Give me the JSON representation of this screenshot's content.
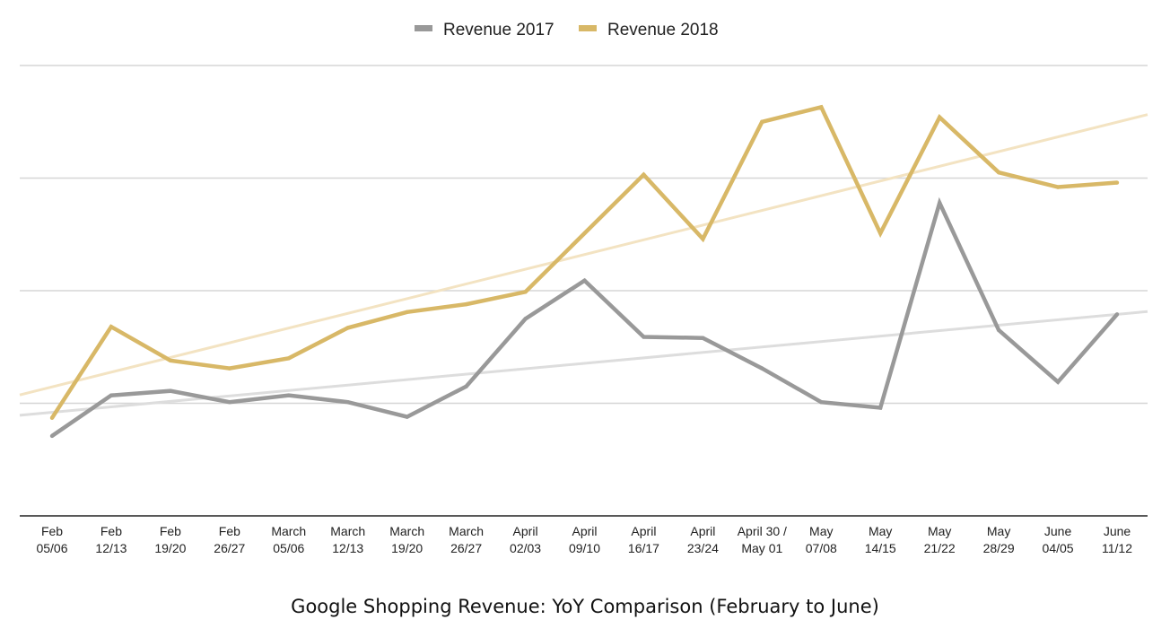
{
  "caption": "Google Shopping Revenue: YoY Comparison (February to June)",
  "chart_data": {
    "type": "line",
    "title": "",
    "xlabel": "",
    "ylabel": "",
    "ylim": [
      0,
      4
    ],
    "gridlines": [
      1,
      2,
      3,
      4
    ],
    "grid": true,
    "legend_position": "top-center",
    "categories": [
      [
        "Feb",
        "05/06"
      ],
      [
        "Feb",
        "12/13"
      ],
      [
        "Feb",
        "19/20"
      ],
      [
        "Feb",
        "26/27"
      ],
      [
        "March",
        "05/06"
      ],
      [
        "March",
        "12/13"
      ],
      [
        "March",
        "19/20"
      ],
      [
        "March",
        "26/27"
      ],
      [
        "April",
        "02/03"
      ],
      [
        "April",
        "09/10"
      ],
      [
        "April",
        "16/17"
      ],
      [
        "April",
        "23/24"
      ],
      [
        "April 30 /",
        "May 01"
      ],
      [
        "May",
        "07/08"
      ],
      [
        "May",
        "14/15"
      ],
      [
        "May",
        "21/22"
      ],
      [
        "May",
        "28/29"
      ],
      [
        "June",
        "04/05"
      ],
      [
        "June",
        "11/12"
      ]
    ],
    "series": [
      {
        "name": "Revenue 2017",
        "color": "#999999",
        "trend_color": "#dddddd",
        "values": [
          0.71,
          1.07,
          1.11,
          1.01,
          1.07,
          1.01,
          0.88,
          1.15,
          1.75,
          2.09,
          1.59,
          1.58,
          1.31,
          1.01,
          0.96,
          2.78,
          1.65,
          1.19,
          1.79
        ],
        "trend": [
          0.92,
          1.79
        ]
      },
      {
        "name": "Revenue 2018",
        "color": "#d8b867",
        "trend_color": "#f3e3c2",
        "values": [
          0.87,
          1.68,
          1.38,
          1.31,
          1.4,
          1.67,
          1.81,
          1.88,
          1.99,
          2.51,
          3.03,
          2.46,
          3.5,
          3.63,
          2.51,
          3.54,
          3.05,
          2.92,
          2.96
        ]
      }
    ]
  }
}
